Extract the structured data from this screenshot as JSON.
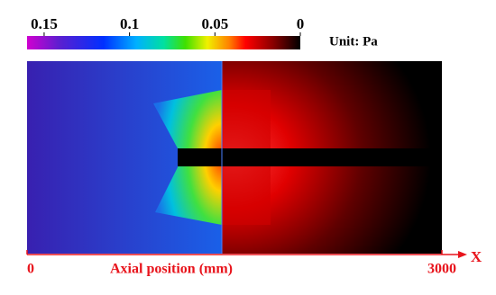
{
  "chart_data": {
    "type": "heatmap",
    "colorbar": {
      "title": "Unit: Pa",
      "clim": [
        0.16,
        0
      ],
      "ticks": [
        0.15,
        0.1,
        0.05,
        0
      ]
    },
    "xlabel": "Axial position (mm)",
    "axis_name": "X",
    "xlim": [
      0,
      3000
    ],
    "xticks": [
      0,
      3000
    ],
    "axis_color": "#e8141c"
  }
}
